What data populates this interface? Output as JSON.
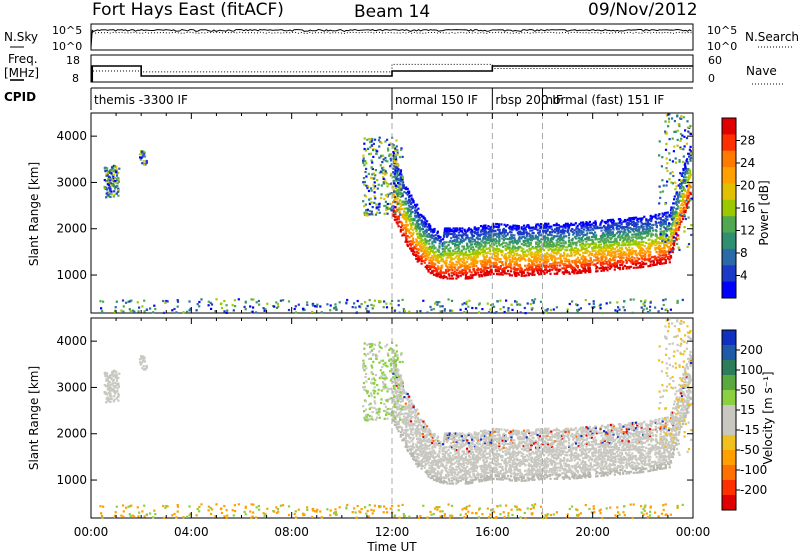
{
  "header": {
    "title": "Fort Hays East (fitACF)",
    "beam": "Beam 14",
    "date": "09/Nov/2012"
  },
  "top_panel": {
    "left_label": "N.Sky",
    "right_label": "N.Search",
    "left_ticks": [
      "10^5",
      "10^0"
    ],
    "right_ticks": [
      "10^5",
      "10^0"
    ]
  },
  "freq_panel": {
    "left_label_1": "Freq.",
    "left_label_2": "[MHz]",
    "right_label": "Nave",
    "left_ticks": [
      "18",
      "8"
    ],
    "right_ticks": [
      "60",
      "0"
    ]
  },
  "cpid": {
    "label": "CPID",
    "segments": [
      {
        "start": 0,
        "end": 12,
        "text": "themis -3300 IF"
      },
      {
        "start": 12,
        "end": 16,
        "text": "normal 150 IF"
      },
      {
        "start": 16,
        "end": 18,
        "text": "rbsp 200 IF"
      },
      {
        "start": 18,
        "end": 24,
        "text": "normal (fast) 151 IF"
      }
    ]
  },
  "power_panel": {
    "ylabel": "Slant Range [km]",
    "cbar_label": "Power [dB]",
    "cbar_ticks": [
      "28",
      "24",
      "20",
      "16",
      "12",
      "8",
      "4"
    ],
    "cbar_colors": [
      "#e00000",
      "#ff3000",
      "#ff7a00",
      "#ffa000",
      "#e0c000",
      "#9cc800",
      "#50a850",
      "#2f8f70",
      "#2a6aa8",
      "#1a3ac8",
      "#0000ff"
    ]
  },
  "velocity_panel": {
    "ylabel": "Slant Range [km]",
    "cbar_label": "Velocity [m s⁻¹]",
    "cbar_ticks": [
      "200",
      "100",
      "50",
      "15",
      "-15",
      "-50",
      "-100",
      "-200"
    ],
    "cbar_colors": [
      "#1030c0",
      "#1f5aa8",
      "#2e7d5a",
      "#5aa840",
      "#8ad040",
      "#c8c8c0",
      "#c8c8c0",
      "#f0c020",
      "#ffa000",
      "#ff7000",
      "#ff3000",
      "#e00000"
    ]
  },
  "x_axis": {
    "label": "Time UT",
    "ticks": [
      "00:00",
      "04:00",
      "08:00",
      "12:00",
      "16:00",
      "20:00",
      "00:00"
    ]
  },
  "chart_data": [
    {
      "type": "line",
      "title": "N.Sky / N.Search",
      "x_range_hours": [
        0,
        24
      ],
      "yscale": "log",
      "ylim": [
        1,
        100000
      ]
    },
    {
      "type": "line",
      "title": "Freq. [MHz] / Nave",
      "x": [
        0,
        0.05,
        2,
        12,
        16,
        24
      ],
      "series": [
        {
          "name": "Freq.",
          "values": [
            8,
            14,
            10,
            12,
            14,
            14
          ]
        },
        {
          "name": "Nave",
          "values": [
            0,
            24,
            22,
            40,
            30,
            28
          ]
        }
      ],
      "ylim_left": [
        8,
        18
      ],
      "ylim_right": [
        0,
        60
      ]
    },
    {
      "type": "heatmap",
      "title": "Power [dB]",
      "xlabel": "Time UT",
      "ylabel": "Slant Range [km]",
      "x_range_hours": [
        0,
        24
      ],
      "ylim": [
        180,
        4500
      ],
      "yticks": [
        1000,
        2000,
        3000,
        4000
      ],
      "color_scale_db": [
        0,
        30
      ],
      "main_echo_lower_edge": {
        "hours": [
          12,
          12.5,
          13,
          13.5,
          14,
          15,
          16,
          17,
          18,
          19,
          20,
          21,
          22,
          23,
          24
        ],
        "range_km": [
          2300,
          1700,
          1300,
          1050,
          950,
          950,
          1050,
          1000,
          1050,
          1050,
          1100,
          1150,
          1200,
          1300,
          3000
        ]
      }
    },
    {
      "type": "heatmap",
      "title": "Velocity [m s⁻¹]",
      "xlabel": "Time UT",
      "ylabel": "Slant Range [km]",
      "x_range_hours": [
        0,
        24
      ],
      "ylim": [
        180,
        4500
      ],
      "yticks": [
        1000,
        2000,
        3000,
        4000
      ],
      "color_scale_ms": [
        -200,
        200
      ]
    }
  ]
}
